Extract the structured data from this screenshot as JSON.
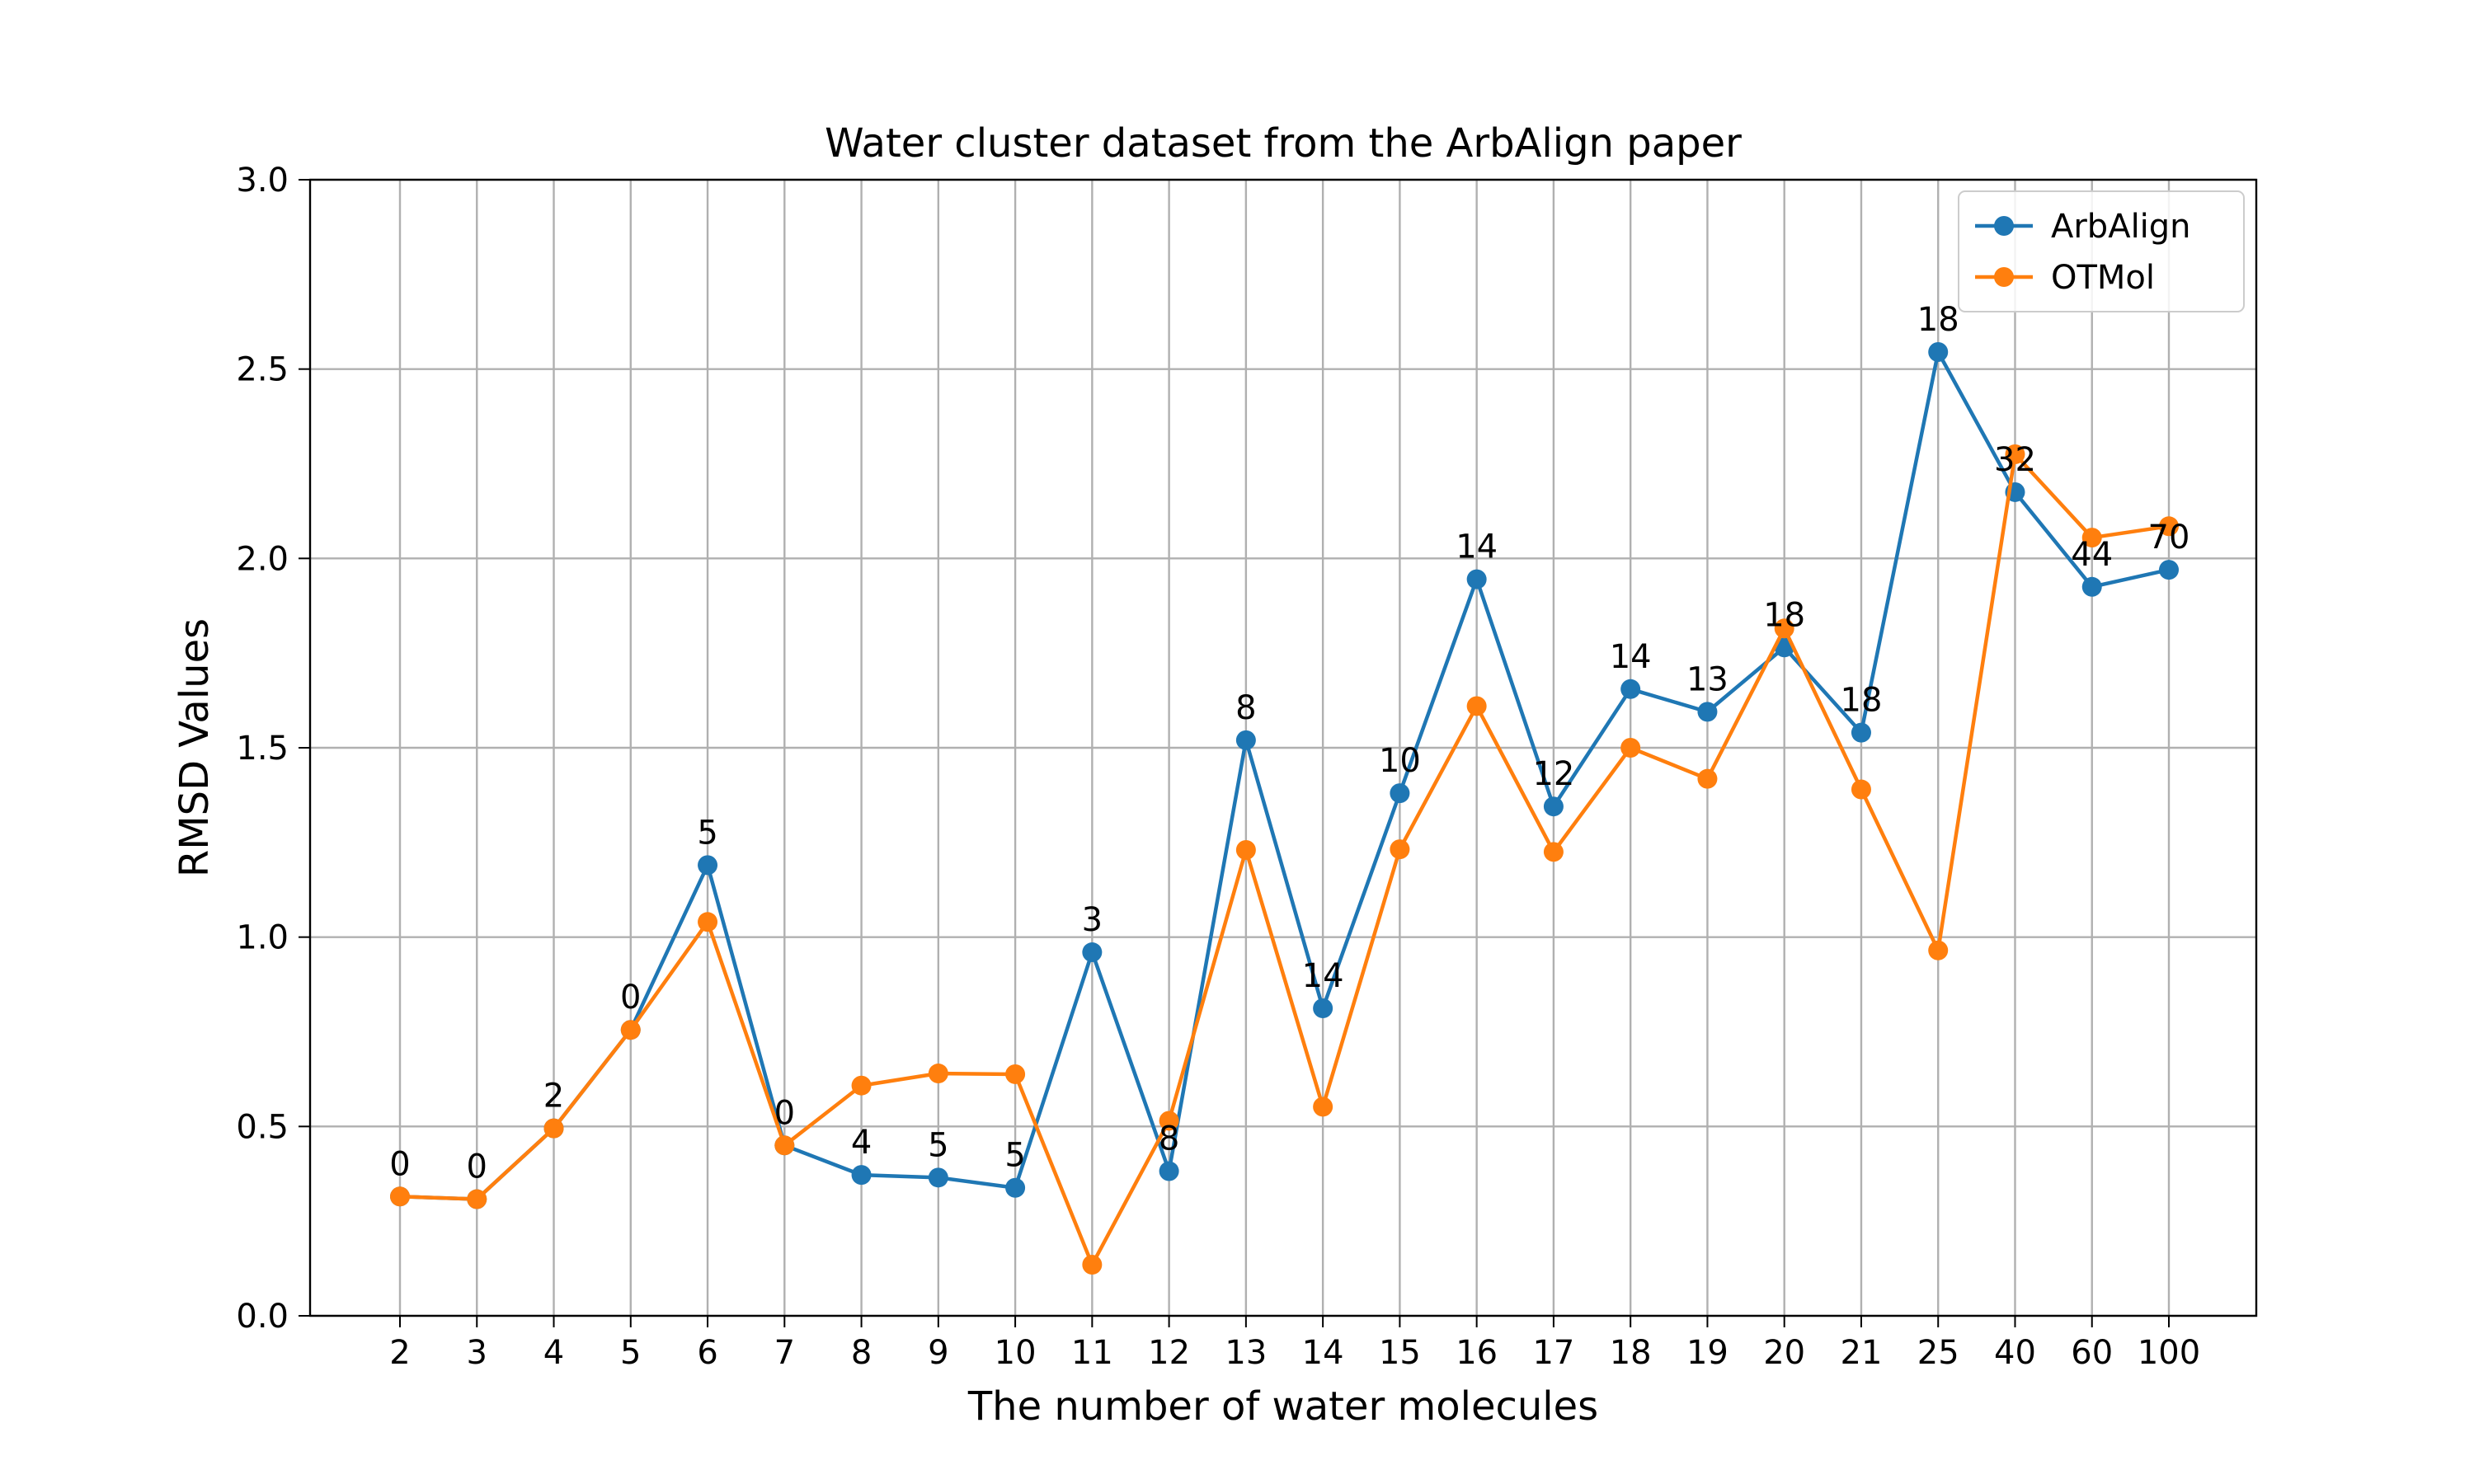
{
  "chart_data": {
    "type": "line",
    "title": "Water cluster dataset from the ArbAlign paper",
    "xlabel": "The number of water molecules",
    "ylabel": "RMSD Values",
    "categories": [
      "2",
      "3",
      "4",
      "5",
      "6",
      "7",
      "8",
      "9",
      "10",
      "11",
      "12",
      "13",
      "14",
      "15",
      "16",
      "17",
      "18",
      "19",
      "20",
      "21",
      "25",
      "40",
      "60",
      "100"
    ],
    "ylim": [
      0,
      3.0
    ],
    "yticks": [
      "0.0",
      "0.5",
      "1.0",
      "1.5",
      "2.0",
      "2.5",
      "3.0"
    ],
    "grid": true,
    "legend_position": "upper right",
    "series": [
      {
        "name": "ArbAlign",
        "color": "#1f77b4",
        "marker": "circle",
        "values": [
          0.315,
          0.308,
          0.495,
          0.755,
          1.19,
          0.45,
          0.372,
          0.365,
          0.338,
          0.96,
          0.382,
          1.52,
          0.812,
          1.38,
          1.945,
          1.345,
          1.655,
          1.595,
          1.765,
          1.54,
          2.545,
          2.175,
          1.925,
          1.97
        ]
      },
      {
        "name": "OTMol",
        "color": "#ff7f0e",
        "marker": "circle",
        "values": [
          0.315,
          0.308,
          0.495,
          0.755,
          1.04,
          0.45,
          0.608,
          0.64,
          0.638,
          0.135,
          0.515,
          1.23,
          0.552,
          1.232,
          1.61,
          1.225,
          1.5,
          1.418,
          1.815,
          1.39,
          0.965,
          2.275,
          2.055,
          2.085
        ]
      }
    ],
    "point_annotations": [
      "0",
      "0",
      "2",
      "0",
      "5",
      "0",
      "4",
      "5",
      "5",
      "3",
      "8",
      "8",
      "14",
      "10",
      "14",
      "12",
      "14",
      "13",
      "18",
      "18",
      "18",
      "32",
      "44",
      "70"
    ]
  }
}
